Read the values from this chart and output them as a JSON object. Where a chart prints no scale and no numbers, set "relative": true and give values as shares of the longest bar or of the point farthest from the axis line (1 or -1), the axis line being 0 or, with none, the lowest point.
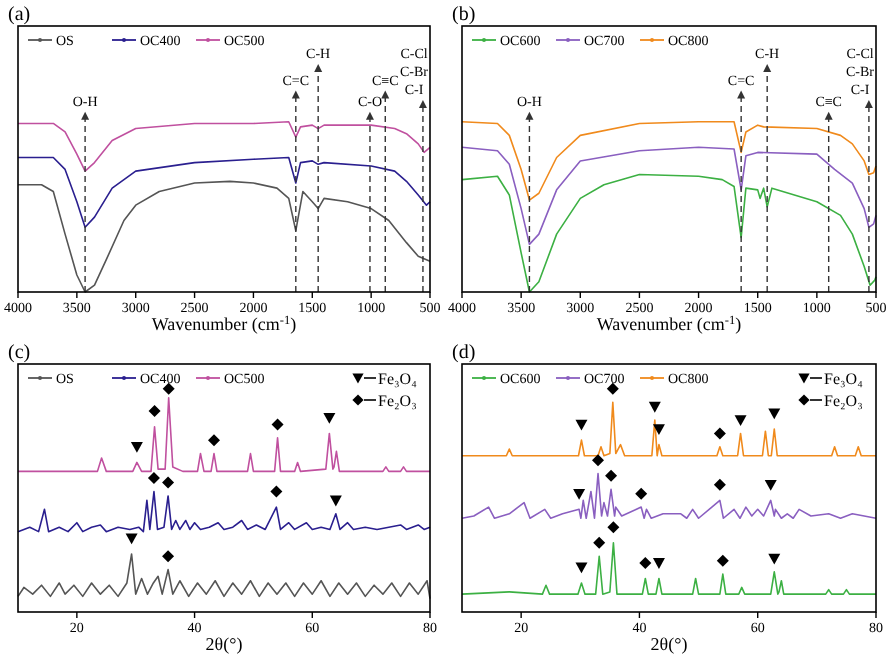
{
  "chart_data": [
    {
      "type": "line",
      "title": "(a)",
      "xlabel": "Wavenumber (cm$^{-1}$)",
      "xlim": [
        4000,
        500
      ],
      "xticks": [
        4000,
        3500,
        3000,
        2500,
        2000,
        1500,
        1000,
        500
      ],
      "relative": true,
      "legend": "top left",
      "ref_lines": [
        {
          "axis": "x",
          "value": 3430,
          "label": "O-H",
          "line_style": "dashed"
        },
        {
          "axis": "x",
          "value": 1640,
          "label": "C=C",
          "line_style": "dashed"
        },
        {
          "axis": "x",
          "value": 1450,
          "label": "C-H",
          "line_style": "dashed"
        },
        {
          "axis": "x",
          "value": 1010,
          "label": "C-O",
          "line_style": "dashed"
        },
        {
          "axis": "x",
          "value": 880,
          "label": "C≡C",
          "line_style": "dashed"
        },
        {
          "axis": "x",
          "value": 560,
          "label": "C-Cl\nC-Br\nC-I",
          "line_style": "dashed"
        }
      ],
      "series": [
        {
          "name": "OS",
          "color": "#555555",
          "x": [
            4000,
            3800,
            3700,
            3600,
            3500,
            3430,
            3350,
            3250,
            3100,
            3000,
            2800,
            2500,
            2200,
            2000,
            1800,
            1700,
            1640,
            1580,
            1500,
            1450,
            1400,
            1200,
            1000,
            850,
            700,
            600,
            500
          ],
          "values": [
            0.63,
            0.63,
            0.59,
            0.34,
            0.1,
            0,
            0.04,
            0.19,
            0.42,
            0.51,
            0.59,
            0.64,
            0.65,
            0.64,
            0.61,
            0.55,
            0.36,
            0.59,
            0.53,
            0.49,
            0.55,
            0.53,
            0.49,
            0.42,
            0.29,
            0.21,
            0.18
          ]
        },
        {
          "name": "OC400",
          "color": "#2a1f8f",
          "x": [
            4000,
            3700,
            3600,
            3500,
            3430,
            3350,
            3200,
            3000,
            2500,
            2000,
            1700,
            1640,
            1600,
            1500,
            1450,
            1400,
            1000,
            800,
            700,
            600,
            530,
            500
          ],
          "values": [
            0.79,
            0.79,
            0.72,
            0.53,
            0.38,
            0.44,
            0.61,
            0.71,
            0.76,
            0.78,
            0.79,
            0.64,
            0.76,
            0.77,
            0.75,
            0.76,
            0.74,
            0.71,
            0.65,
            0.57,
            0.51,
            0.53
          ]
        },
        {
          "name": "OC500",
          "color": "#c0509f",
          "x": [
            4000,
            3700,
            3600,
            3500,
            3430,
            3350,
            3200,
            3000,
            2500,
            2000,
            1700,
            1640,
            1600,
            1500,
            1450,
            1400,
            1000,
            800,
            700,
            600,
            550,
            500
          ],
          "values": [
            0.99,
            0.99,
            0.94,
            0.81,
            0.71,
            0.76,
            0.89,
            0.96,
            0.99,
            0.99,
            1,
            0.91,
            0.97,
            0.98,
            0.96,
            0.98,
            0.98,
            0.96,
            0.93,
            0.87,
            0.82,
            0.85
          ]
        }
      ]
    },
    {
      "type": "line",
      "title": "(b)",
      "xlabel": "Wavenumber (cm$^{-1}$)",
      "xlim": [
        4000,
        500
      ],
      "xticks": [
        4000,
        3500,
        3000,
        2500,
        2000,
        1500,
        1000,
        500
      ],
      "relative": true,
      "legend": "top left",
      "ref_lines": [
        {
          "axis": "x",
          "value": 3430,
          "label": "O-H",
          "line_style": "dashed"
        },
        {
          "axis": "x",
          "value": 1640,
          "label": "C=C",
          "line_style": "dashed"
        },
        {
          "axis": "x",
          "value": 1420,
          "label": "C-H",
          "line_style": "dashed"
        },
        {
          "axis": "x",
          "value": 900,
          "label": "C≡C",
          "line_style": "dashed"
        },
        {
          "axis": "x",
          "value": 560,
          "label": "C-Cl\nC-Br\nC-I",
          "line_style": "dashed"
        }
      ],
      "series": [
        {
          "name": "OC600",
          "color": "#3cb043",
          "x": [
            4000,
            3700,
            3600,
            3500,
            3430,
            3350,
            3200,
            3000,
            2800,
            2500,
            2000,
            1800,
            1700,
            1640,
            1600,
            1500,
            1480,
            1450,
            1420,
            1380,
            1000,
            800,
            700,
            600,
            550,
            510,
            500
          ],
          "values": [
            0.66,
            0.68,
            0.57,
            0.23,
            0,
            0.06,
            0.34,
            0.55,
            0.63,
            0.69,
            0.68,
            0.66,
            0.62,
            0.32,
            0.61,
            0.6,
            0.55,
            0.61,
            0.5,
            0.61,
            0.53,
            0.45,
            0.34,
            0.15,
            0.04,
            0.07,
            0.09
          ]
        },
        {
          "name": "OC700",
          "color": "#8a5fc0",
          "x": [
            4000,
            3700,
            3600,
            3500,
            3430,
            3350,
            3200,
            3000,
            2500,
            2000,
            1700,
            1640,
            1600,
            1500,
            1000,
            850,
            700,
            600,
            560,
            520,
            500
          ],
          "values": [
            0.85,
            0.83,
            0.75,
            0.49,
            0.28,
            0.34,
            0.6,
            0.77,
            0.83,
            0.85,
            0.84,
            0.6,
            0.8,
            0.82,
            0.81,
            0.72,
            0.64,
            0.49,
            0.38,
            0.4,
            0.45
          ]
        },
        {
          "name": "OC800",
          "color": "#f08a1c",
          "x": [
            4000,
            3700,
            3600,
            3500,
            3430,
            3350,
            3200,
            3000,
            2500,
            2000,
            1700,
            1640,
            1600,
            1500,
            1450,
            1000,
            800,
            700,
            600,
            560,
            520,
            500
          ],
          "values": [
            1,
            0.99,
            0.92,
            0.72,
            0.54,
            0.58,
            0.79,
            0.92,
            0.99,
            1,
            1,
            0.82,
            0.94,
            0.98,
            0.97,
            0.96,
            0.92,
            0.87,
            0.77,
            0.69,
            0.7,
            0.74
          ]
        }
      ]
    },
    {
      "type": "line",
      "title": "(c)",
      "xlabel": "2θ(°)",
      "xlim": [
        10,
        80
      ],
      "xticks": [
        20,
        40,
        60,
        80
      ],
      "relative": true,
      "legend": "top",
      "series": [
        {
          "name": "OS",
          "color": "#555555",
          "x": [
            10,
            11,
            12.5,
            14,
            15.5,
            17,
            18,
            19.5,
            21,
            22.5,
            24,
            25.5,
            27,
            28.5,
            29.3,
            30,
            31,
            32,
            33,
            33.8,
            34.5,
            35.5,
            36.3,
            37.5,
            39,
            40.5,
            42,
            43.5,
            45,
            46.5,
            48,
            49.5,
            51,
            52.5,
            54,
            55.5,
            57,
            58.5,
            60,
            61.5,
            63,
            64.5,
            66,
            67.5,
            69,
            70.5,
            72,
            73.5,
            75,
            76.5,
            78,
            79.5,
            80
          ],
          "values": [
            0.07,
            0.11,
            0.08,
            0.12,
            0.07,
            0.13,
            0.08,
            0.12,
            0.07,
            0.13,
            0.08,
            0.12,
            0.07,
            0.13,
            0.26,
            0.08,
            0.15,
            0.08,
            0.13,
            0.16,
            0.08,
            0.19,
            0.08,
            0.14,
            0.07,
            0.13,
            0.08,
            0.14,
            0.07,
            0.13,
            0.08,
            0.14,
            0.07,
            0.13,
            0.08,
            0.13,
            0.07,
            0.13,
            0.08,
            0.14,
            0.07,
            0.13,
            0.08,
            0.13,
            0.07,
            0.12,
            0.08,
            0.13,
            0.07,
            0.13,
            0.08,
            0.14,
            0.06
          ]
        },
        {
          "name": "OC400",
          "color": "#2a1f8f",
          "x": [
            10,
            12,
            13.5,
            14.5,
            15.2,
            17,
            18.5,
            20,
            21,
            22.5,
            24,
            25,
            27,
            29,
            30.5,
            31.3,
            31.9,
            32.4,
            33.1,
            33.7,
            34.8,
            35.5,
            36.1,
            36.8,
            37.5,
            38.5,
            39.2,
            40,
            41,
            42.5,
            44,
            45,
            46.5,
            48,
            49,
            50.5,
            52,
            53.9,
            54.6,
            56,
            57,
            59,
            60,
            61.5,
            63,
            64,
            64.7,
            66,
            67,
            69,
            71,
            73,
            75,
            76,
            78,
            79,
            80
          ],
          "values": [
            0.36,
            0.38,
            0.36,
            0.46,
            0.36,
            0.38,
            0.36,
            0.4,
            0.36,
            0.38,
            0.39,
            0.36,
            0.38,
            0.37,
            0.38,
            0.36,
            0.5,
            0.37,
            0.54,
            0.37,
            0.38,
            0.52,
            0.37,
            0.41,
            0.37,
            0.41,
            0.37,
            0.4,
            0.37,
            0.38,
            0.4,
            0.37,
            0.38,
            0.41,
            0.37,
            0.39,
            0.37,
            0.47,
            0.37,
            0.4,
            0.37,
            0.4,
            0.37,
            0.38,
            0.37,
            0.44,
            0.37,
            0.4,
            0.37,
            0.38,
            0.37,
            0.38,
            0.39,
            0.37,
            0.39,
            0.37,
            0.38
          ]
        },
        {
          "name": "OC500",
          "color": "#c0509f",
          "x": [
            10,
            15,
            20,
            23.5,
            24.2,
            25,
            29.5,
            30.2,
            31,
            32.6,
            33.2,
            33.8,
            35,
            35.6,
            36.3,
            38,
            40.5,
            41,
            41.6,
            42.8,
            43.3,
            43.8,
            49,
            49.5,
            50,
            53.6,
            54.1,
            54.6,
            57,
            57.5,
            58,
            62.3,
            62.9,
            63.5,
            63.7,
            64.1,
            64.6,
            72,
            72.5,
            73,
            75,
            75.5,
            76,
            80
          ],
          "values": [
            0.63,
            0.63,
            0.63,
            0.63,
            0.69,
            0.63,
            0.63,
            0.67,
            0.63,
            0.63,
            0.83,
            0.64,
            0.64,
            0.96,
            0.65,
            0.63,
            0.63,
            0.71,
            0.63,
            0.63,
            0.71,
            0.63,
            0.63,
            0.71,
            0.63,
            0.63,
            0.78,
            0.63,
            0.63,
            0.67,
            0.63,
            0.64,
            0.8,
            0.64,
            0.65,
            0.72,
            0.63,
            0.63,
            0.65,
            0.63,
            0.63,
            0.65,
            0.63,
            0.63
          ]
        },
        {
          "name": "Fe₃O₄",
          "type": "scatter",
          "marker": "triangle",
          "color": "#000000",
          "x": [
            29.3,
            64,
            30.2,
            62.9
          ],
          "values": [
            0.33,
            0.5,
            0.74,
            0.87
          ]
        },
        {
          "name": "Fe₂O₃",
          "type": "scatter",
          "marker": "diamond",
          "color": "#000000",
          "x": [
            35.5,
            33.1,
            35.5,
            53.9,
            33.2,
            35.6,
            43.3,
            54.1
          ],
          "values": [
            0.25,
            0.6,
            0.58,
            0.54,
            0.9,
            1,
            0.77,
            0.84
          ]
        }
      ]
    },
    {
      "type": "line",
      "title": "(d)",
      "xlabel": "2θ(°)",
      "xlim": [
        10,
        80
      ],
      "xticks": [
        20,
        40,
        60,
        80
      ],
      "relative": true,
      "legend": "top",
      "series": [
        {
          "name": "OC600",
          "color": "#3cb043",
          "x": [
            10,
            18,
            23.6,
            24.2,
            24.8,
            29.6,
            30.2,
            30.8,
            32.6,
            33.2,
            33.8,
            35,
            35.6,
            36.2,
            40.5,
            41,
            41.5,
            42.8,
            43.3,
            43.8,
            49,
            49.5,
            50,
            53.6,
            54.1,
            54.6,
            56.8,
            57.3,
            57.8,
            62.2,
            62.8,
            63.4,
            63.6,
            64,
            64.4,
            71.5,
            72,
            72.5,
            74.5,
            75,
            75.5,
            80
          ],
          "values": [
            0.08,
            0.09,
            0.08,
            0.12,
            0.08,
            0.08,
            0.13,
            0.08,
            0.08,
            0.25,
            0.08,
            0.09,
            0.31,
            0.08,
            0.08,
            0.15,
            0.08,
            0.08,
            0.15,
            0.08,
            0.08,
            0.15,
            0.08,
            0.08,
            0.17,
            0.08,
            0.08,
            0.11,
            0.08,
            0.08,
            0.18,
            0.08,
            0.09,
            0.14,
            0.08,
            0.08,
            0.1,
            0.08,
            0.08,
            0.1,
            0.08,
            0.08
          ]
        },
        {
          "name": "OC700",
          "color": "#8a5fc0",
          "x": [
            10,
            12,
            14.5,
            15.5,
            18,
            20.5,
            21.5,
            24,
            25,
            27,
            29.8,
            30.1,
            30.5,
            31,
            31.8,
            32.4,
            33,
            33.6,
            34,
            34.6,
            35.2,
            35.8,
            36,
            37,
            40.3,
            40.8,
            41.2,
            42,
            44,
            47,
            48,
            49,
            50,
            53.6,
            54.2,
            56,
            57,
            58,
            59,
            60,
            61,
            62.2,
            62.8,
            63,
            64,
            65,
            66,
            67,
            69,
            72,
            74,
            76,
            78,
            80
          ],
          "values": [
            0.42,
            0.43,
            0.47,
            0.42,
            0.44,
            0.49,
            0.42,
            0.46,
            0.42,
            0.44,
            0.46,
            0.42,
            0.5,
            0.42,
            0.54,
            0.42,
            0.62,
            0.43,
            0.49,
            0.43,
            0.55,
            0.43,
            0.47,
            0.43,
            0.47,
            0.42,
            0.46,
            0.42,
            0.44,
            0.44,
            0.42,
            0.46,
            0.42,
            0.5,
            0.42,
            0.46,
            0.42,
            0.47,
            0.43,
            0.46,
            0.43,
            0.5,
            0.43,
            0.46,
            0.42,
            0.44,
            0.42,
            0.46,
            0.43,
            0.44,
            0.42,
            0.44,
            0.43,
            0.42
          ]
        },
        {
          "name": "OC800",
          "color": "#f08a1c",
          "x": [
            10,
            17.5,
            18,
            18.5,
            29.7,
            30.2,
            30.7,
            33,
            33.5,
            34,
            35,
            35.5,
            36,
            36.8,
            37.5,
            42.1,
            42.6,
            43,
            43.3,
            43.8,
            53.1,
            53.6,
            54.1,
            56.6,
            57.1,
            57.6,
            60.8,
            61.3,
            61.8,
            62.3,
            62.8,
            63.3,
            72.5,
            73,
            73.5,
            76.5,
            77,
            77.5,
            80
          ],
          "values": [
            0.7,
            0.7,
            0.73,
            0.7,
            0.7,
            0.77,
            0.7,
            0.7,
            0.74,
            0.7,
            0.71,
            0.94,
            0.71,
            0.75,
            0.7,
            0.7,
            0.86,
            0.7,
            0.75,
            0.7,
            0.7,
            0.74,
            0.7,
            0.7,
            0.8,
            0.7,
            0.7,
            0.81,
            0.7,
            0.7,
            0.82,
            0.7,
            0.7,
            0.74,
            0.7,
            0.7,
            0.74,
            0.7,
            0.7
          ]
        },
        {
          "name": "Fe₃O₄",
          "type": "scatter",
          "marker": "triangle",
          "color": "#000000",
          "x": [
            30.2,
            43.3,
            62.8,
            29.8,
            62.2,
            30.2,
            42.6,
            43.3,
            57.1,
            62.8
          ],
          "values": [
            0.2,
            0.22,
            0.24,
            0.53,
            0.57,
            0.84,
            0.92,
            0.82,
            0.86,
            0.89
          ]
        },
        {
          "name": "Fe₂O₃",
          "type": "scatter",
          "marker": "diamond",
          "color": "#000000",
          "x": [
            33.2,
            35.6,
            41,
            54.1,
            33,
            35.2,
            40.3,
            53.6,
            35.5,
            53.6
          ],
          "values": [
            0.31,
            0.38,
            0.22,
            0.23,
            0.68,
            0.61,
            0.53,
            0.57,
            1,
            0.8
          ]
        }
      ]
    }
  ]
}
